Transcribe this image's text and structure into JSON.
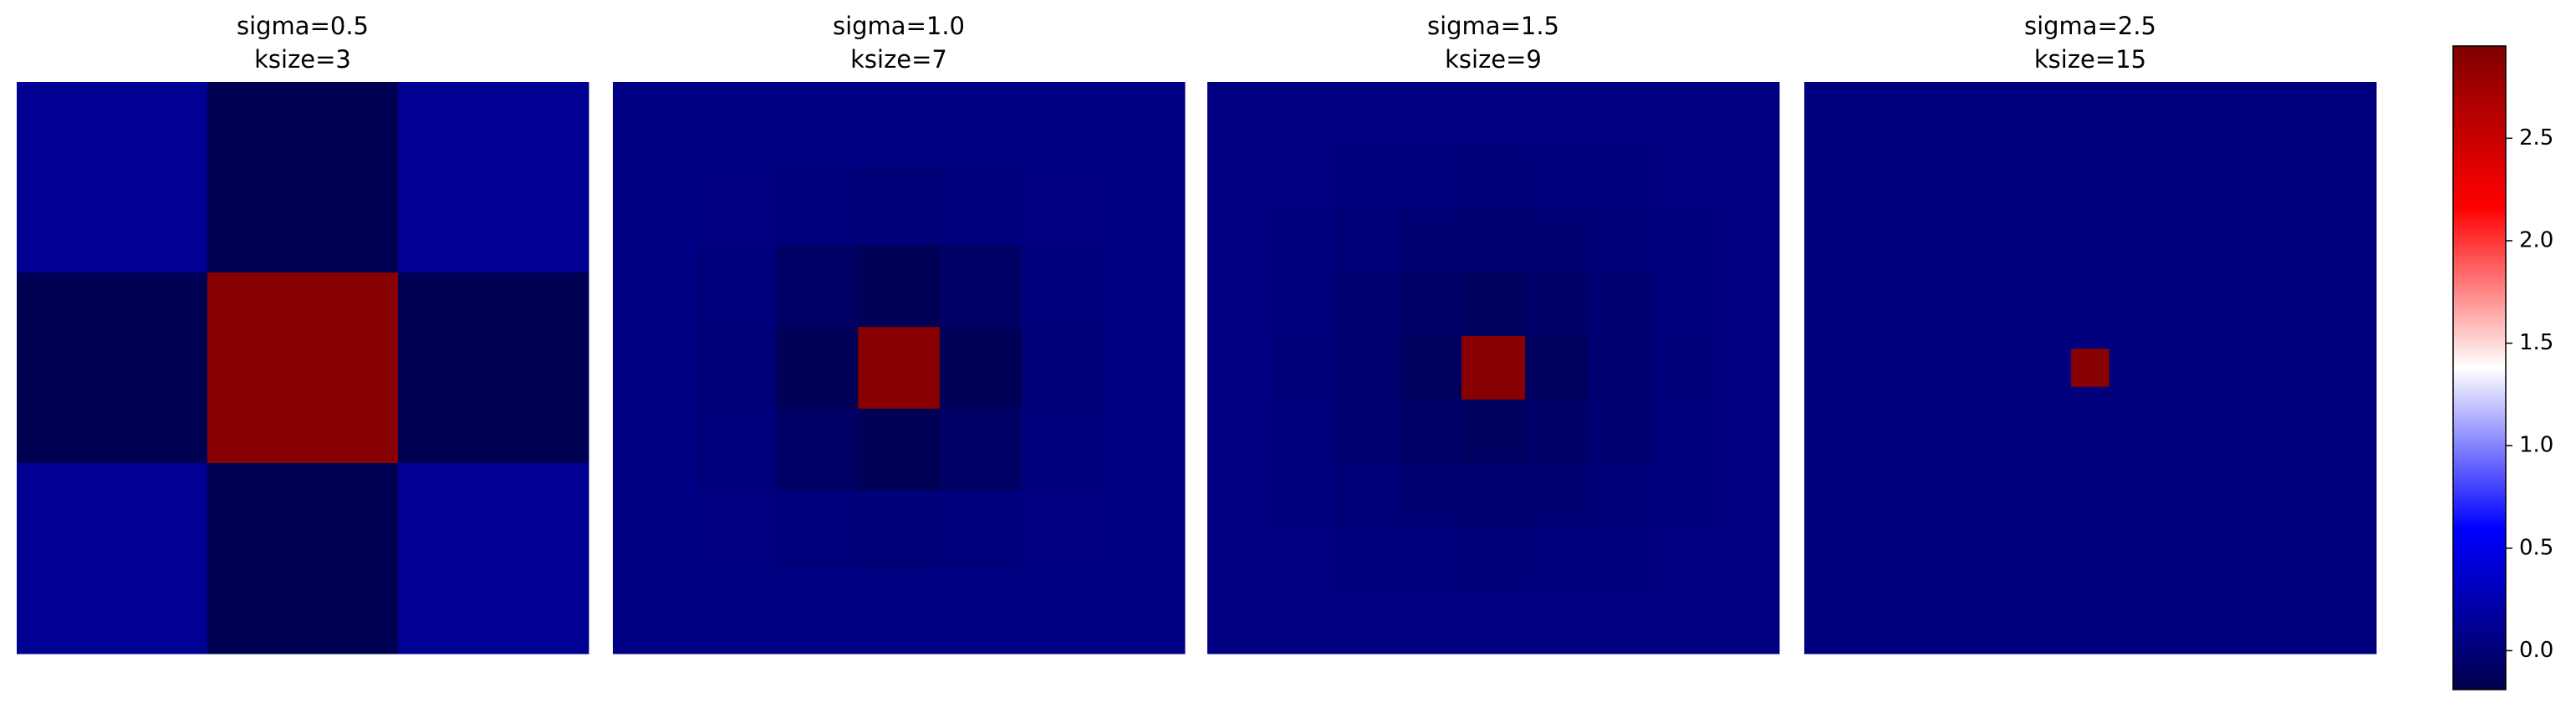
{
  "chart_data": [
    {
      "type": "heatmap",
      "title": "sigma=0.5",
      "subtitle": "ksize=3",
      "values": [
        [
          0.12,
          -0.16,
          0.12
        ],
        [
          -0.16,
          2.9,
          -0.16
        ],
        [
          0.12,
          -0.16,
          0.12
        ]
      ]
    },
    {
      "type": "heatmap",
      "title": "sigma=1.0",
      "subtitle": "ksize=7",
      "values": [
        [
          0.06,
          0.06,
          0.06,
          0.06,
          0.06,
          0.06,
          0.06
        ],
        [
          0.06,
          0.04,
          0.02,
          0.0,
          0.02,
          0.04,
          0.06
        ],
        [
          0.06,
          0.02,
          -0.08,
          -0.15,
          -0.08,
          0.02,
          0.06
        ],
        [
          0.06,
          0.0,
          -0.15,
          2.9,
          -0.15,
          0.0,
          0.06
        ],
        [
          0.06,
          0.02,
          -0.08,
          -0.15,
          -0.08,
          0.02,
          0.06
        ],
        [
          0.06,
          0.04,
          0.02,
          0.0,
          0.02,
          0.04,
          0.06
        ],
        [
          0.06,
          0.06,
          0.06,
          0.06,
          0.06,
          0.06,
          0.06
        ]
      ]
    },
    {
      "type": "heatmap",
      "title": "sigma=1.5",
      "subtitle": "ksize=9",
      "values": [
        [
          0.04,
          0.04,
          0.04,
          0.04,
          0.04,
          0.04,
          0.04,
          0.04,
          0.04
        ],
        [
          0.04,
          0.04,
          0.03,
          0.02,
          0.01,
          0.02,
          0.03,
          0.04,
          0.04
        ],
        [
          0.04,
          0.03,
          0.0,
          -0.02,
          -0.03,
          -0.02,
          0.0,
          0.03,
          0.04
        ],
        [
          0.04,
          0.02,
          -0.02,
          -0.07,
          -0.1,
          -0.07,
          -0.02,
          0.02,
          0.04
        ],
        [
          0.04,
          0.01,
          -0.03,
          -0.1,
          2.9,
          -0.1,
          -0.03,
          0.01,
          0.04
        ],
        [
          0.04,
          0.02,
          -0.02,
          -0.07,
          -0.1,
          -0.07,
          -0.02,
          0.02,
          0.04
        ],
        [
          0.04,
          0.03,
          0.0,
          -0.02,
          -0.03,
          -0.02,
          0.0,
          0.03,
          0.04
        ],
        [
          0.04,
          0.04,
          0.03,
          0.02,
          0.01,
          0.02,
          0.03,
          0.04,
          0.04
        ],
        [
          0.04,
          0.04,
          0.04,
          0.04,
          0.04,
          0.04,
          0.04,
          0.04,
          0.04
        ]
      ]
    },
    {
      "type": "heatmap",
      "title": "sigma=2.5",
      "subtitle": "ksize=15",
      "values": [
        [
          0.03,
          0.03,
          0.03,
          0.03,
          0.03,
          0.03,
          0.03,
          0.03,
          0.03,
          0.03,
          0.03,
          0.03,
          0.03,
          0.03,
          0.03
        ],
        [
          0.03,
          0.03,
          0.03,
          0.03,
          0.03,
          0.03,
          0.03,
          0.03,
          0.03,
          0.03,
          0.03,
          0.03,
          0.03,
          0.03,
          0.03
        ],
        [
          0.03,
          0.03,
          0.03,
          0.03,
          0.03,
          0.03,
          0.03,
          0.03,
          0.03,
          0.03,
          0.03,
          0.03,
          0.03,
          0.03,
          0.03
        ],
        [
          0.03,
          0.03,
          0.03,
          0.03,
          0.03,
          0.03,
          0.03,
          0.03,
          0.03,
          0.03,
          0.03,
          0.03,
          0.03,
          0.03,
          0.03
        ],
        [
          0.03,
          0.03,
          0.03,
          0.03,
          0.03,
          0.03,
          0.03,
          0.03,
          0.03,
          0.03,
          0.03,
          0.03,
          0.03,
          0.03,
          0.03
        ],
        [
          0.03,
          0.03,
          0.03,
          0.03,
          0.03,
          0.03,
          0.03,
          0.03,
          0.03,
          0.03,
          0.03,
          0.03,
          0.03,
          0.03,
          0.03
        ],
        [
          0.03,
          0.03,
          0.03,
          0.03,
          0.03,
          0.03,
          0.03,
          0.03,
          0.03,
          0.03,
          0.03,
          0.03,
          0.03,
          0.03,
          0.03
        ],
        [
          0.03,
          0.03,
          0.03,
          0.03,
          0.03,
          0.03,
          0.03,
          2.9,
          0.03,
          0.03,
          0.03,
          0.03,
          0.03,
          0.03,
          0.03
        ],
        [
          0.03,
          0.03,
          0.03,
          0.03,
          0.03,
          0.03,
          0.03,
          0.03,
          0.03,
          0.03,
          0.03,
          0.03,
          0.03,
          0.03,
          0.03
        ],
        [
          0.03,
          0.03,
          0.03,
          0.03,
          0.03,
          0.03,
          0.03,
          0.03,
          0.03,
          0.03,
          0.03,
          0.03,
          0.03,
          0.03,
          0.03
        ],
        [
          0.03,
          0.03,
          0.03,
          0.03,
          0.03,
          0.03,
          0.03,
          0.03,
          0.03,
          0.03,
          0.03,
          0.03,
          0.03,
          0.03,
          0.03
        ],
        [
          0.03,
          0.03,
          0.03,
          0.03,
          0.03,
          0.03,
          0.03,
          0.03,
          0.03,
          0.03,
          0.03,
          0.03,
          0.03,
          0.03,
          0.03
        ],
        [
          0.03,
          0.03,
          0.03,
          0.03,
          0.03,
          0.03,
          0.03,
          0.03,
          0.03,
          0.03,
          0.03,
          0.03,
          0.03,
          0.03,
          0.03
        ],
        [
          0.03,
          0.03,
          0.03,
          0.03,
          0.03,
          0.03,
          0.03,
          0.03,
          0.03,
          0.03,
          0.03,
          0.03,
          0.03,
          0.03,
          0.03
        ],
        [
          0.03,
          0.03,
          0.03,
          0.03,
          0.03,
          0.03,
          0.03,
          0.03,
          0.03,
          0.03,
          0.03,
          0.03,
          0.03,
          0.03,
          0.03
        ]
      ]
    },
    {
      "type": "colorbar",
      "cmap": "seismic",
      "zlim": [
        -0.19,
        2.95
      ],
      "zticks": [
        {
          "value": 0,
          "label": "0.0"
        },
        0.5,
        {
          "value": 1,
          "label": "1.0"
        },
        1.5,
        {
          "value": 2,
          "label": "2.0"
        },
        2.5
      ]
    }
  ]
}
